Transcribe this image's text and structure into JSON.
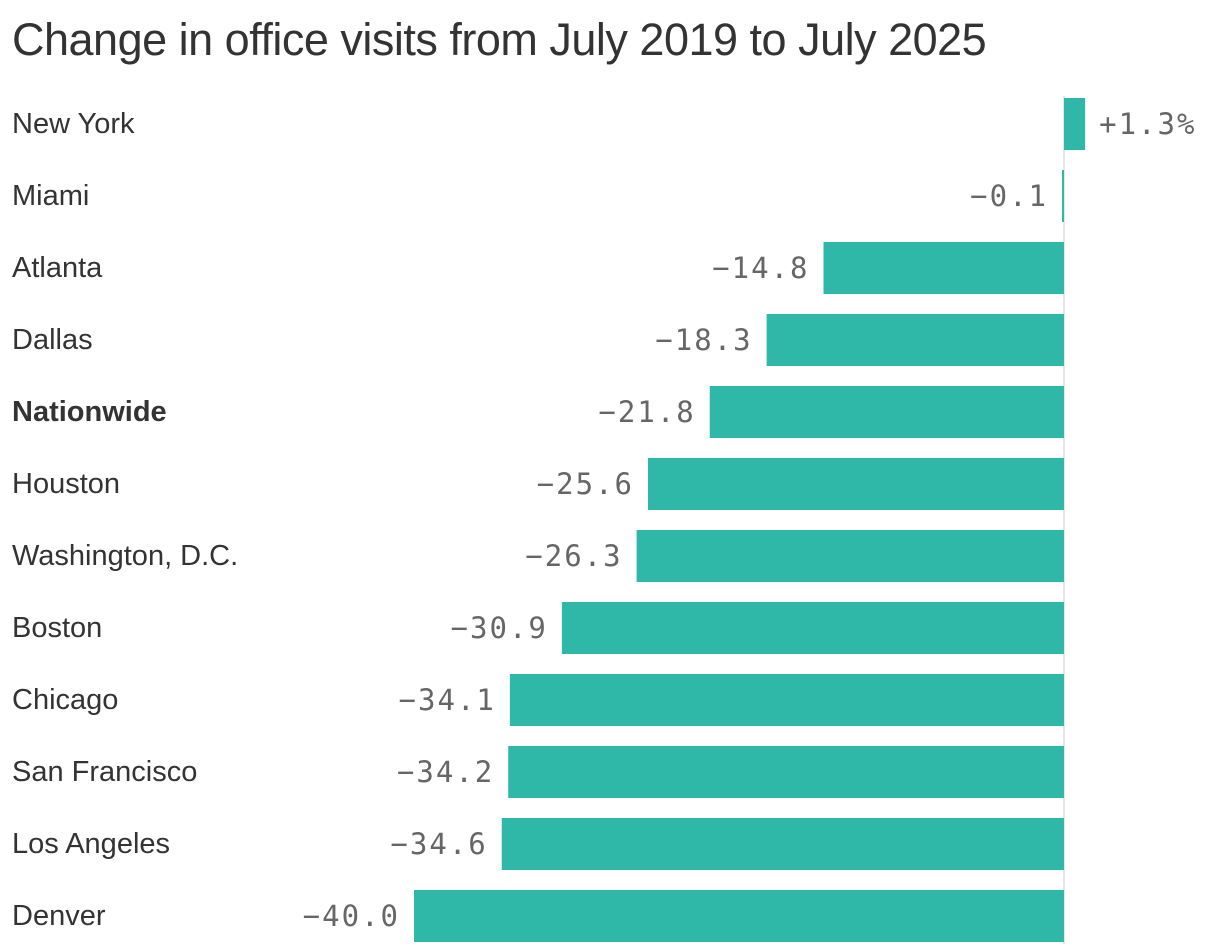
{
  "chart_data": {
    "type": "bar",
    "orientation": "horizontal",
    "title": "Change in office visits from July 2019 to July 2025",
    "xlabel": "",
    "ylabel": "",
    "unit": "%",
    "categories": [
      "New York",
      "Miami",
      "Atlanta",
      "Dallas",
      "Nationwide",
      "Houston",
      "Washington, D.C.",
      "Boston",
      "Chicago",
      "San Francisco",
      "Los Angeles",
      "Denver"
    ],
    "values": [
      1.3,
      -0.1,
      -14.8,
      -18.3,
      -21.8,
      -25.6,
      -26.3,
      -30.9,
      -34.1,
      -34.2,
      -34.6,
      -40.0
    ],
    "value_labels": [
      "+1.3%",
      "−0.1",
      "−14.8",
      "−18.3",
      "−21.8",
      "−25.6",
      "−26.3",
      "−30.9",
      "−34.1",
      "−34.2",
      "−34.6",
      "−40.0"
    ],
    "highlight": [
      "Nationwide"
    ],
    "xlim": [
      -40,
      1.3
    ],
    "grid": false,
    "legend": "none",
    "colors": {
      "bar": "#2fb7a8",
      "zero_line": "#cccccc",
      "category_text": "#333333",
      "value_text": "#666666",
      "title_text": "#333333"
    }
  }
}
